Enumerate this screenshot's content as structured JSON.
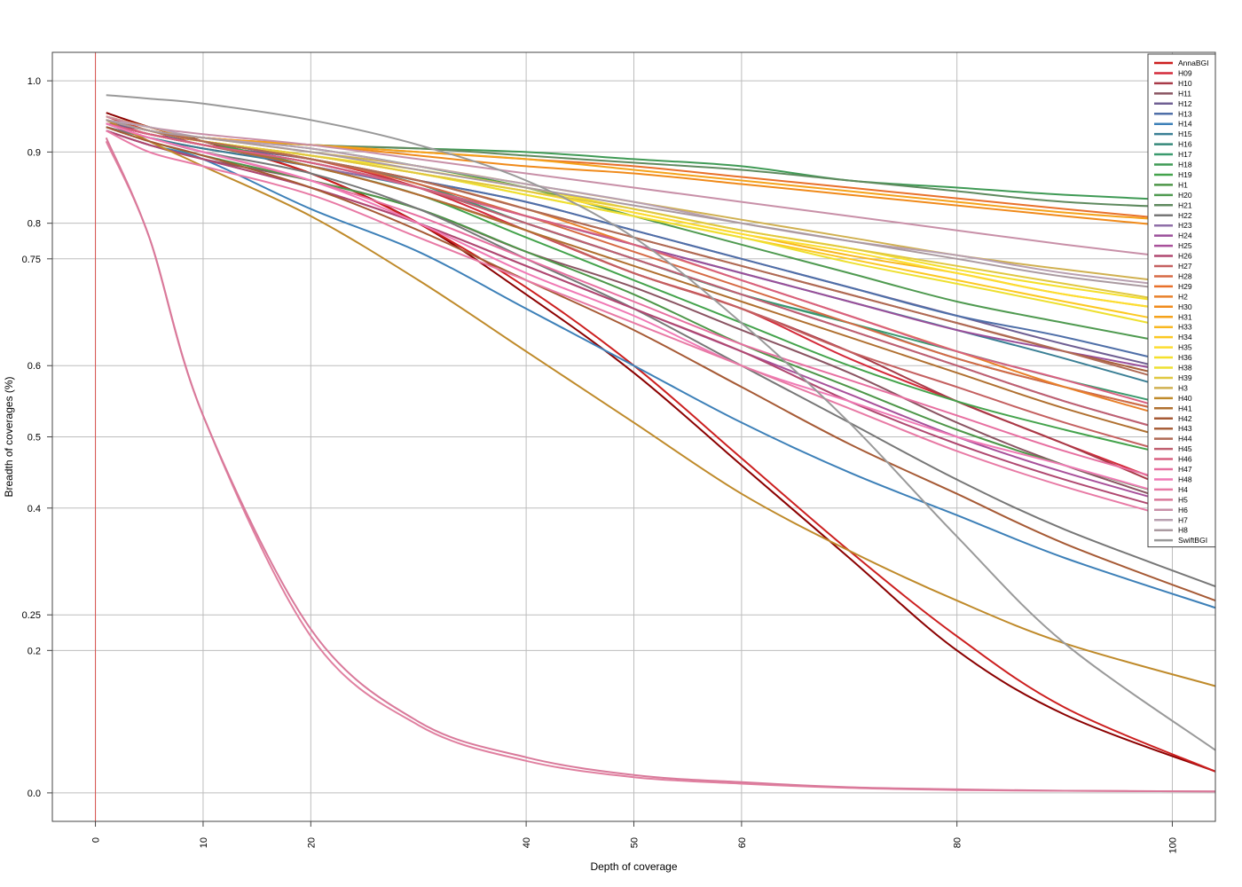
{
  "chart_data": {
    "type": "line",
    "title": "",
    "xlabel": "Depth of coverage",
    "ylabel": "Breadth of coverages (%)",
    "xlim": [
      -4,
      104
    ],
    "ylim": [
      -0.04,
      1.04
    ],
    "x_ticks": [
      0,
      10,
      20,
      40,
      50,
      60,
      80,
      100
    ],
    "y_ticks": [
      0.0,
      0.2,
      0.25,
      0.4,
      0.5,
      0.6,
      0.75,
      0.8,
      0.9,
      1.0
    ],
    "y_tick_labels": [
      "0.0",
      "0.2",
      "0.25",
      "0.4",
      "0.5",
      "0.6",
      "0.75",
      "0.8",
      "0.9",
      "1.0"
    ],
    "grid": true,
    "vline": {
      "x": 0,
      "color": "#d9534f"
    },
    "legend_position": "top-right",
    "x": [
      1,
      5,
      10,
      20,
      30,
      40,
      50,
      60,
      70,
      80,
      90,
      104
    ],
    "series": [
      {
        "name": "AnnaBGI",
        "color": "#cc1f1f",
        "values": [
          0.95,
          0.93,
          0.915,
          0.87,
          0.8,
          0.71,
          0.6,
          0.47,
          0.34,
          0.22,
          0.12,
          0.03
        ]
      },
      {
        "name": "H09",
        "color": "#d42a3a",
        "values": [
          0.945,
          0.925,
          0.915,
          0.89,
          0.85,
          0.79,
          0.73,
          0.68,
          0.61,
          0.55,
          0.49,
          0.41
        ]
      },
      {
        "name": "H10",
        "color": "#a83a48",
        "values": [
          0.94,
          0.92,
          0.905,
          0.88,
          0.84,
          0.79,
          0.73,
          0.68,
          0.62,
          0.55,
          0.49,
          0.4
        ]
      },
      {
        "name": "H11",
        "color": "#8a5462",
        "values": [
          0.93,
          0.91,
          0.89,
          0.86,
          0.82,
          0.76,
          0.71,
          0.65,
          0.59,
          0.52,
          0.46,
          0.39
        ]
      },
      {
        "name": "H12",
        "color": "#6f5f93",
        "values": [
          0.94,
          0.93,
          0.91,
          0.89,
          0.86,
          0.83,
          0.79,
          0.75,
          0.71,
          0.67,
          0.63,
          0.58
        ]
      },
      {
        "name": "H13",
        "color": "#4f6fa8",
        "values": [
          0.945,
          0.93,
          0.915,
          0.89,
          0.86,
          0.83,
          0.79,
          0.75,
          0.71,
          0.67,
          0.64,
          0.59
        ]
      },
      {
        "name": "H14",
        "color": "#3d80b8",
        "values": [
          0.93,
          0.91,
          0.89,
          0.82,
          0.76,
          0.68,
          0.6,
          0.52,
          0.45,
          0.39,
          0.33,
          0.26
        ]
      },
      {
        "name": "H15",
        "color": "#3a7f95",
        "values": [
          0.935,
          0.92,
          0.905,
          0.88,
          0.85,
          0.81,
          0.77,
          0.73,
          0.69,
          0.65,
          0.61,
          0.55
        ]
      },
      {
        "name": "H16",
        "color": "#35897a",
        "values": [
          0.94,
          0.925,
          0.91,
          0.885,
          0.85,
          0.8,
          0.75,
          0.7,
          0.66,
          0.61,
          0.57,
          0.52
        ]
      },
      {
        "name": "H17",
        "color": "#3a9a6e",
        "values": [
          0.945,
          0.93,
          0.915,
          0.89,
          0.855,
          0.8,
          0.75,
          0.7,
          0.66,
          0.62,
          0.58,
          0.53
        ]
      },
      {
        "name": "H18",
        "color": "#3f9a55",
        "values": [
          0.945,
          0.93,
          0.92,
          0.91,
          0.905,
          0.9,
          0.89,
          0.88,
          0.86,
          0.85,
          0.84,
          0.83
        ]
      },
      {
        "name": "H19",
        "color": "#44a34c",
        "values": [
          0.945,
          0.93,
          0.915,
          0.88,
          0.84,
          0.78,
          0.72,
          0.66,
          0.6,
          0.55,
          0.51,
          0.46
        ]
      },
      {
        "name": "H1",
        "color": "#4d9648",
        "values": [
          0.935,
          0.915,
          0.895,
          0.86,
          0.82,
          0.76,
          0.7,
          0.63,
          0.57,
          0.51,
          0.46,
          0.4
        ]
      },
      {
        "name": "H20",
        "color": "#4f9a50",
        "values": [
          0.945,
          0.93,
          0.92,
          0.905,
          0.88,
          0.85,
          0.81,
          0.77,
          0.73,
          0.69,
          0.66,
          0.62
        ]
      },
      {
        "name": "H21",
        "color": "#5f8a5f",
        "values": [
          0.945,
          0.93,
          0.92,
          0.91,
          0.905,
          0.895,
          0.885,
          0.875,
          0.86,
          0.845,
          0.83,
          0.82
        ]
      },
      {
        "name": "H22",
        "color": "#777777",
        "values": [
          0.935,
          0.92,
          0.9,
          0.87,
          0.82,
          0.75,
          0.68,
          0.6,
          0.52,
          0.44,
          0.37,
          0.29
        ]
      },
      {
        "name": "H23",
        "color": "#8f6fa8",
        "values": [
          0.94,
          0.925,
          0.91,
          0.88,
          0.85,
          0.8,
          0.75,
          0.7,
          0.65,
          0.6,
          0.55,
          0.49
        ]
      },
      {
        "name": "H24",
        "color": "#9a4f9a",
        "values": [
          0.94,
          0.925,
          0.91,
          0.885,
          0.85,
          0.81,
          0.77,
          0.73,
          0.69,
          0.65,
          0.62,
          0.58
        ]
      },
      {
        "name": "H25",
        "color": "#a8509a",
        "values": [
          0.93,
          0.91,
          0.89,
          0.85,
          0.8,
          0.74,
          0.68,
          0.62,
          0.56,
          0.5,
          0.45,
          0.39
        ]
      },
      {
        "name": "H26",
        "color": "#b04870",
        "values": [
          0.93,
          0.91,
          0.89,
          0.85,
          0.8,
          0.74,
          0.68,
          0.62,
          0.55,
          0.49,
          0.44,
          0.38
        ]
      },
      {
        "name": "H27",
        "color": "#c46060",
        "values": [
          0.94,
          0.925,
          0.91,
          0.88,
          0.84,
          0.79,
          0.73,
          0.68,
          0.62,
          0.57,
          0.52,
          0.46
        ]
      },
      {
        "name": "H28",
        "color": "#d66a45",
        "values": [
          0.945,
          0.93,
          0.915,
          0.89,
          0.855,
          0.81,
          0.76,
          0.71,
          0.66,
          0.61,
          0.57,
          0.52
        ]
      },
      {
        "name": "H29",
        "color": "#e8702a",
        "values": [
          0.945,
          0.93,
          0.92,
          0.91,
          0.9,
          0.89,
          0.88,
          0.865,
          0.85,
          0.835,
          0.82,
          0.8
        ]
      },
      {
        "name": "H2",
        "color": "#e8802a",
        "values": [
          0.945,
          0.93,
          0.915,
          0.89,
          0.86,
          0.82,
          0.77,
          0.72,
          0.67,
          0.62,
          0.57,
          0.51
        ]
      },
      {
        "name": "H30",
        "color": "#f08a1a",
        "values": [
          0.95,
          0.935,
          0.92,
          0.91,
          0.895,
          0.88,
          0.87,
          0.855,
          0.84,
          0.825,
          0.81,
          0.79
        ]
      },
      {
        "name": "H31",
        "color": "#f5a21a",
        "values": [
          0.95,
          0.935,
          0.92,
          0.91,
          0.9,
          0.89,
          0.875,
          0.86,
          0.845,
          0.83,
          0.815,
          0.8
        ]
      },
      {
        "name": "H33",
        "color": "#f8b820",
        "values": [
          0.945,
          0.93,
          0.915,
          0.895,
          0.87,
          0.845,
          0.815,
          0.785,
          0.755,
          0.73,
          0.7,
          0.67
        ]
      },
      {
        "name": "H34",
        "color": "#fcc820",
        "values": [
          0.945,
          0.93,
          0.915,
          0.895,
          0.87,
          0.84,
          0.81,
          0.78,
          0.75,
          0.72,
          0.69,
          0.65
        ]
      },
      {
        "name": "H35",
        "color": "#fdde30",
        "values": [
          0.945,
          0.93,
          0.915,
          0.895,
          0.87,
          0.845,
          0.815,
          0.785,
          0.76,
          0.73,
          0.7,
          0.67
        ]
      },
      {
        "name": "H36",
        "color": "#f5e02a",
        "values": [
          0.945,
          0.93,
          0.915,
          0.895,
          0.875,
          0.85,
          0.82,
          0.79,
          0.765,
          0.735,
          0.71,
          0.68
        ]
      },
      {
        "name": "H38",
        "color": "#eee030",
        "values": [
          0.945,
          0.93,
          0.915,
          0.895,
          0.87,
          0.84,
          0.81,
          0.78,
          0.745,
          0.715,
          0.685,
          0.64
        ]
      },
      {
        "name": "H39",
        "color": "#e0c840",
        "values": [
          0.945,
          0.93,
          0.915,
          0.895,
          0.87,
          0.845,
          0.82,
          0.79,
          0.765,
          0.74,
          0.715,
          0.68
        ]
      },
      {
        "name": "H3",
        "color": "#d0b050",
        "values": [
          0.945,
          0.93,
          0.92,
          0.9,
          0.88,
          0.855,
          0.83,
          0.805,
          0.78,
          0.755,
          0.735,
          0.71
        ]
      },
      {
        "name": "H40",
        "color": "#bf8a2a",
        "values": [
          0.945,
          0.915,
          0.88,
          0.81,
          0.72,
          0.62,
          0.52,
          0.42,
          0.34,
          0.27,
          0.21,
          0.15
        ]
      },
      {
        "name": "H41",
        "color": "#b07030",
        "values": [
          0.94,
          0.925,
          0.91,
          0.88,
          0.84,
          0.79,
          0.74,
          0.69,
          0.64,
          0.59,
          0.54,
          0.48
        ]
      },
      {
        "name": "H42",
        "color": "#a65a35",
        "values": [
          0.935,
          0.915,
          0.895,
          0.85,
          0.79,
          0.72,
          0.65,
          0.57,
          0.49,
          0.42,
          0.35,
          0.27
        ]
      },
      {
        "name": "H43",
        "color": "#a8603a",
        "values": [
          0.945,
          0.93,
          0.915,
          0.89,
          0.86,
          0.82,
          0.78,
          0.74,
          0.7,
          0.66,
          0.62,
          0.57
        ]
      },
      {
        "name": "H44",
        "color": "#b06a55",
        "values": [
          0.945,
          0.93,
          0.915,
          0.89,
          0.86,
          0.82,
          0.78,
          0.74,
          0.7,
          0.66,
          0.62,
          0.56
        ]
      },
      {
        "name": "H45",
        "color": "#c06070",
        "values": [
          0.94,
          0.925,
          0.91,
          0.885,
          0.85,
          0.8,
          0.75,
          0.7,
          0.65,
          0.6,
          0.55,
          0.49
        ]
      },
      {
        "name": "H46",
        "color": "#d86080",
        "values": [
          0.94,
          0.925,
          0.91,
          0.885,
          0.85,
          0.81,
          0.77,
          0.72,
          0.67,
          0.62,
          0.58,
          0.52
        ]
      },
      {
        "name": "H47",
        "color": "#e76fa0",
        "values": [
          0.94,
          0.92,
          0.9,
          0.86,
          0.81,
          0.75,
          0.69,
          0.63,
          0.58,
          0.53,
          0.48,
          0.42
        ]
      },
      {
        "name": "H48",
        "color": "#f07ab5",
        "values": [
          0.94,
          0.92,
          0.9,
          0.86,
          0.8,
          0.73,
          0.67,
          0.6,
          0.55,
          0.5,
          0.46,
          0.4
        ]
      },
      {
        "name": "H4",
        "color": "#e87aa5",
        "values": [
          0.93,
          0.9,
          0.88,
          0.84,
          0.78,
          0.72,
          0.66,
          0.6,
          0.54,
          0.48,
          0.43,
          0.37
        ]
      },
      {
        "name": "H5",
        "color": "#d9799a",
        "values": [
          0.92,
          0.78,
          0.53,
          0.23,
          0.1,
          0.05,
          0.025,
          0.015,
          0.008,
          0.005,
          0.003,
          0.002
        ]
      },
      {
        "name": "H6",
        "color": "#c890a8",
        "values": [
          0.95,
          0.935,
          0.925,
          0.91,
          0.89,
          0.87,
          0.85,
          0.83,
          0.81,
          0.79,
          0.77,
          0.745
        ]
      },
      {
        "name": "H7",
        "color": "#b8a0b0",
        "values": [
          0.945,
          0.935,
          0.92,
          0.905,
          0.88,
          0.855,
          0.83,
          0.8,
          0.775,
          0.755,
          0.73,
          0.705
        ]
      },
      {
        "name": "H8",
        "color": "#aa9aa0",
        "values": [
          0.945,
          0.93,
          0.92,
          0.9,
          0.875,
          0.85,
          0.825,
          0.8,
          0.775,
          0.75,
          0.725,
          0.7
        ]
      },
      {
        "name": "SwiftBGI",
        "color": "#999999",
        "values": [
          0.98,
          0.975,
          0.968,
          0.945,
          0.91,
          0.86,
          0.78,
          0.66,
          0.52,
          0.36,
          0.21,
          0.06
        ]
      }
    ],
    "extra_lines": [
      {
        "color": "#8b0000",
        "values": [
          0.955,
          0.935,
          0.915,
          0.87,
          0.8,
          0.7,
          0.59,
          0.46,
          0.33,
          0.2,
          0.11,
          0.03
        ]
      },
      {
        "color": "#e080a0",
        "values": [
          0.915,
          0.78,
          0.53,
          0.22,
          0.095,
          0.045,
          0.022,
          0.013,
          0.007,
          0.004,
          0.003,
          0.002
        ]
      }
    ]
  }
}
